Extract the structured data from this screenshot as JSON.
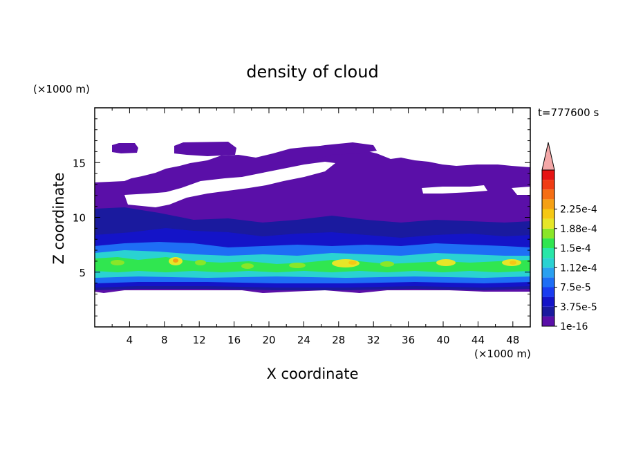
{
  "chart_data": {
    "type": "heatmap",
    "title": "density of cloud",
    "xlabel": "X coordinate",
    "ylabel": "Z coordinate",
    "x_unit": "(×1000 m)",
    "y_unit": "(×1000 m)",
    "time_label": "t=777600 s",
    "xlim": [
      0,
      50
    ],
    "ylim": [
      0,
      20
    ],
    "x_ticks": [
      4,
      8,
      12,
      16,
      20,
      24,
      28,
      32,
      36,
      40,
      44,
      48
    ],
    "y_ticks": [
      5,
      10,
      15
    ],
    "colorbar": {
      "labels": [
        "1e-16",
        "3.75e-5",
        "7.5e-5",
        "1.12e-4",
        "1.5e-4",
        "1.88e-4",
        "2.25e-4"
      ],
      "colors": [
        "#5a0fa8",
        "#1a1a9e",
        "#1414c8",
        "#1a3cf0",
        "#1e6ef5",
        "#2aa0f0",
        "#2ad2d2",
        "#28e6a8",
        "#30e650",
        "#8ae628",
        "#e6e628",
        "#f5c814",
        "#f5a014",
        "#f56e14",
        "#f03c14",
        "#e61414"
      ],
      "overflow_color": "#f4a8a8"
    },
    "layers": [
      {
        "name": "cloud body",
        "z_range": [
          3.4,
          13.2
        ],
        "level": "1e-16"
      },
      {
        "name": "upper patches",
        "z_range": [
          13.2,
          17.0
        ],
        "level": "1e-16"
      },
      {
        "name": "dense band",
        "z_range": [
          4.0,
          7.0
        ],
        "level_max": "1.88e-4"
      }
    ]
  }
}
